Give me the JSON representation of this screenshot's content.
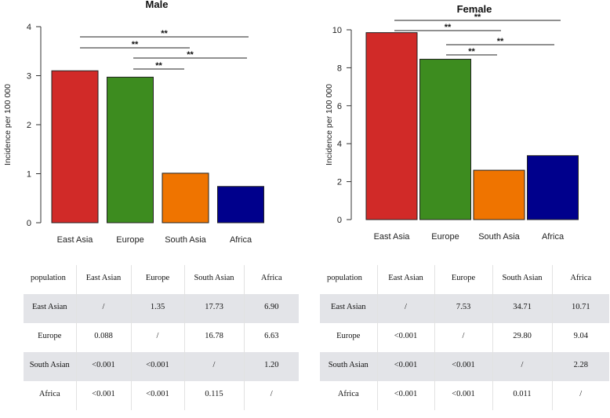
{
  "chart_data": [
    {
      "type": "bar",
      "title": "Male",
      "ylabel": "Incidence per 100 000",
      "xlabel": "",
      "categories": [
        "East Asia",
        "Europe",
        "South Asia",
        "Africa"
      ],
      "values": [
        3.1,
        2.97,
        1.01,
        0.74
      ],
      "colors": [
        "#d12a28",
        "#3d8c1f",
        "#ef7400",
        "#00008c"
      ],
      "ylim": [
        0,
        4
      ],
      "yticks": [
        0,
        1,
        2,
        3,
        4
      ],
      "ytick_labels": [
        "0",
        "1",
        "2",
        "3",
        "4"
      ],
      "significance": [
        {
          "from": "East Asia",
          "to": "Africa",
          "label": "**"
        },
        {
          "from": "East Asia",
          "to": "South Asia",
          "label": "**"
        },
        {
          "from": "Europe",
          "to": "Africa",
          "label": "**"
        },
        {
          "from": "Europe",
          "to": "South Asia",
          "label": "**"
        }
      ]
    },
    {
      "type": "bar",
      "title": "Female",
      "ylabel": "Incidence per 100 000",
      "xlabel": "",
      "categories": [
        "East Asia",
        "Europe",
        "South Asia",
        "Africa"
      ],
      "values": [
        9.85,
        8.45,
        2.6,
        3.37
      ],
      "colors": [
        "#d12a28",
        "#3d8c1f",
        "#ef7400",
        "#00008c"
      ],
      "ylim": [
        0,
        10
      ],
      "yticks": [
        0,
        2,
        4,
        6,
        8,
        10
      ],
      "ytick_labels": [
        "0",
        "2",
        "4",
        "6",
        "8",
        "10"
      ],
      "significance": [
        {
          "from": "East Asia",
          "to": "Africa",
          "label": "**"
        },
        {
          "from": "East Asia",
          "to": "South Asia",
          "label": "**"
        },
        {
          "from": "Europe",
          "to": "Africa",
          "label": "**"
        },
        {
          "from": "Europe",
          "to": "South Asia",
          "label": "**"
        }
      ]
    }
  ],
  "tables": [
    {
      "headers": [
        "population",
        "East Asian",
        "Europe",
        "South Asian",
        "Africa"
      ],
      "rows": [
        [
          "East Asian",
          "/",
          "1.35",
          "17.73",
          "6.90"
        ],
        [
          "Europe",
          "0.088",
          "/",
          "16.78",
          "6.63"
        ],
        [
          "South Asian",
          "<0.001",
          "<0.001",
          "/",
          "1.20"
        ],
        [
          "Africa",
          "<0.001",
          "<0.001",
          "0.115",
          "/"
        ]
      ]
    },
    {
      "headers": [
        "population",
        "East Asian",
        "Europe",
        "South Asian",
        "Africa"
      ],
      "rows": [
        [
          "East Asian",
          "/",
          "7.53",
          "34.71",
          "10.71"
        ],
        [
          "Europe",
          "<0.001",
          "/",
          "29.80",
          "9.04"
        ],
        [
          "South Asian",
          "<0.001",
          "<0.001",
          "/",
          "2.28"
        ],
        [
          "Africa",
          "<0.001",
          "<0.001",
          "0.011",
          "/"
        ]
      ]
    }
  ]
}
